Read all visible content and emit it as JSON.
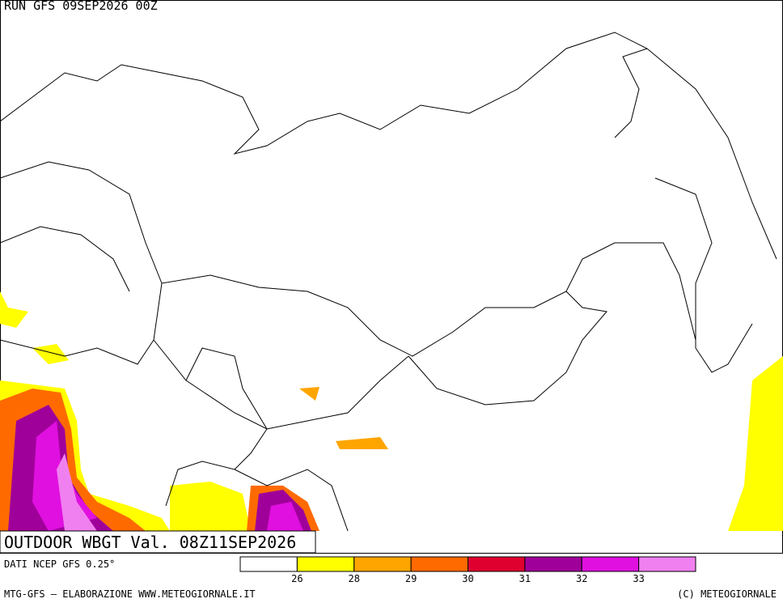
{
  "header": {
    "run": "RUN GFS 09SEP2026 00Z"
  },
  "title": "OUTDOOR WBGT Val. 08Z11SEP2026",
  "source": "DATI NCEP GFS 0.25°",
  "legend": {
    "ticks": [
      26,
      28,
      29,
      30,
      31,
      32,
      33
    ],
    "colors": [
      "#ffffff",
      "#ffff00",
      "#ffa500",
      "#ff6a00",
      "#e00030",
      "#a0009a",
      "#e010e0",
      "#f080f0"
    ]
  },
  "footer": {
    "left": "MTG-GFS – ELABORAZIONE WWW.METEOGIORNALE.IT",
    "right": "(C) METEOGIORNALE"
  }
}
